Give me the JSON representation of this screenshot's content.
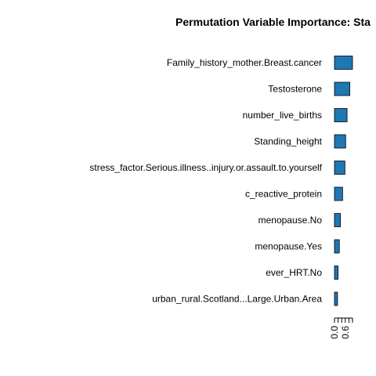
{
  "chart_data": {
    "type": "bar",
    "orientation": "horizontal",
    "title": "Permutation Variable Importance: Sta",
    "xlabel": "",
    "ylabel": "",
    "categories": [
      "Family_history_mother.Breast.cancer",
      "Testosterone",
      "number_live_births",
      "Standing_height",
      "stress_factor.Serious.illness..injury.or.assault.to.yourself",
      "c_reactive_protein",
      "menopause.No",
      "menopause.Yes",
      "ever_HRT.No",
      "urban_rural.Scotland...Large.Urban.Area"
    ],
    "values": [
      1.0,
      0.85,
      0.7,
      0.62,
      0.58,
      0.45,
      0.33,
      0.27,
      0.2,
      0.17
    ],
    "xlim": [
      0,
      1.0
    ],
    "x_tick_labels": [
      "0.0",
      "0.6"
    ],
    "x_tick_values": [
      0.0,
      0.6
    ],
    "x_minor_ticks": [
      0.0,
      0.2,
      0.4,
      0.6,
      0.8,
      1.0
    ],
    "bar_color": "#1f77b4",
    "bar_edge_color": "#000000",
    "grid": false,
    "legend": "none"
  }
}
